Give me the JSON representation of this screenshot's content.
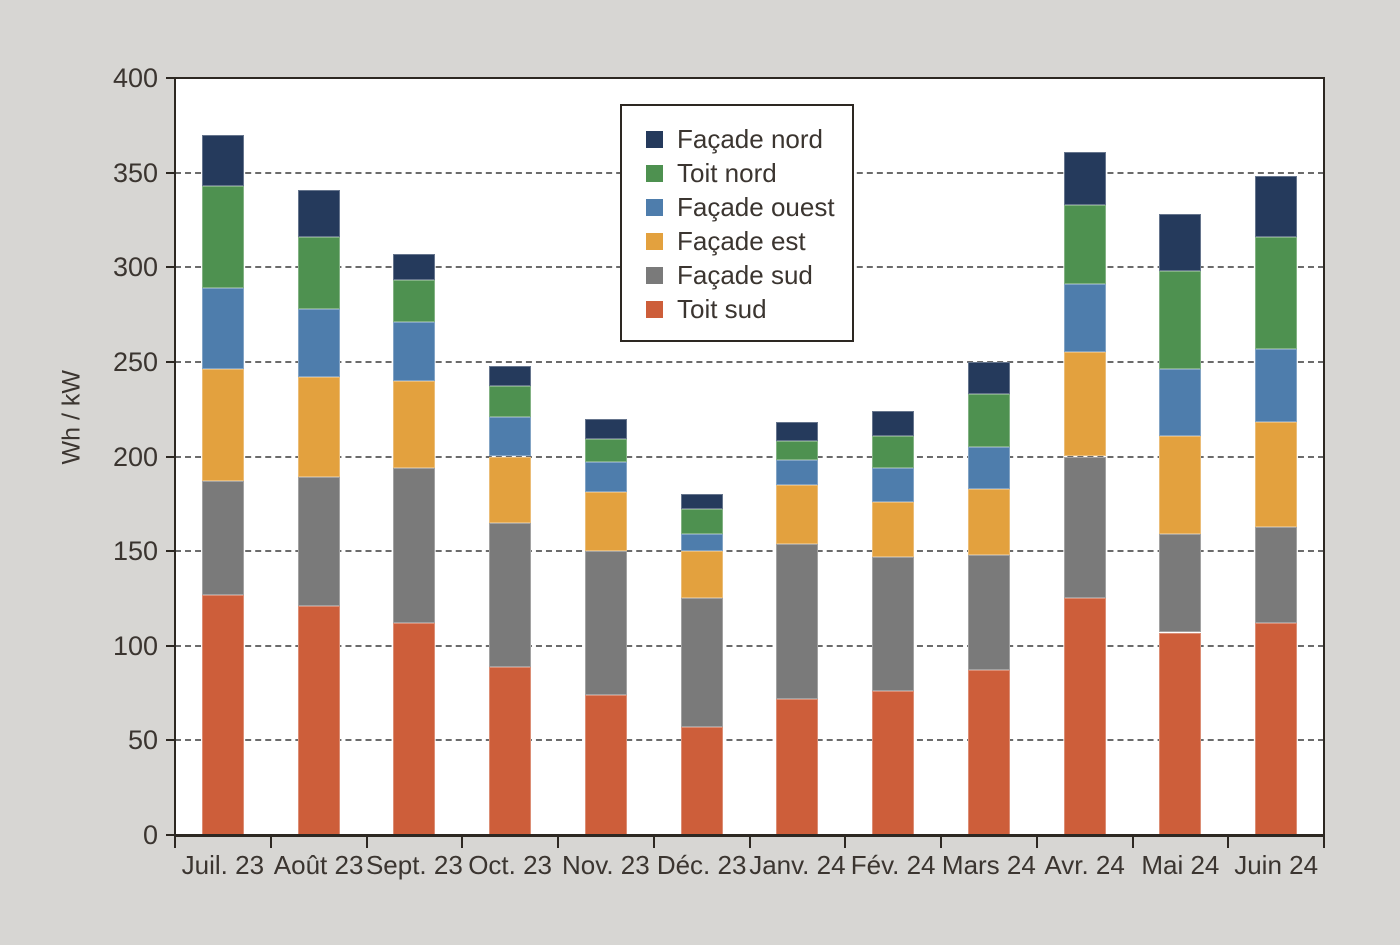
{
  "chart_data": {
    "type": "bar",
    "stacked": true,
    "title": "",
    "xlabel": "",
    "ylabel": "Wh / kW",
    "ylim": [
      0,
      400
    ],
    "yticks": [
      0,
      50,
      100,
      150,
      200,
      250,
      300,
      350,
      400
    ],
    "grid": "horizontal dashed lines at 50..350",
    "legend_position": "upper middle inside plot, boxed",
    "categories": [
      "Juil. 23",
      "Août 23",
      "Sept. 23",
      "Oct. 23",
      "Nov. 23",
      "Déc. 23",
      "Janv. 24",
      "Fév. 24",
      "Mars 24",
      "Avr. 24",
      "Mai 24",
      "Juin 24"
    ],
    "series": [
      {
        "name": "Toit sud",
        "color": "#cd5e3a",
        "values": [
          127,
          121,
          112,
          89,
          74,
          57,
          72,
          76,
          87,
          125,
          107,
          112
        ]
      },
      {
        "name": "Façade sud",
        "color": "#7a7a7a",
        "values": [
          60,
          68,
          82,
          76,
          76,
          68,
          82,
          71,
          61,
          75,
          52,
          51
        ]
      },
      {
        "name": "Façade est",
        "color": "#e3a13e",
        "values": [
          59,
          53,
          46,
          35,
          31,
          25,
          31,
          29,
          35,
          55,
          52,
          55
        ]
      },
      {
        "name": "Façade ouest",
        "color": "#4e7dac",
        "values": [
          43,
          36,
          31,
          21,
          16,
          9,
          13,
          18,
          22,
          36,
          35,
          39
        ]
      },
      {
        "name": "Toit nord",
        "color": "#4e9150",
        "values": [
          54,
          38,
          22,
          16,
          12,
          13,
          10,
          17,
          28,
          42,
          52,
          59
        ]
      },
      {
        "name": "Façade nord",
        "color": "#253a5c",
        "values": [
          27,
          25,
          14,
          11,
          11,
          8,
          10,
          13,
          17,
          28,
          30,
          32
        ]
      }
    ],
    "totals": [
      370,
      341,
      307,
      248,
      220,
      180,
      218,
      224,
      250,
      361,
      328,
      348
    ],
    "legend_order": [
      "Façade nord",
      "Toit nord",
      "Façade ouest",
      "Façade est",
      "Façade sud",
      "Toit sud"
    ],
    "colors": {
      "page_background": "#d7d6d3",
      "plot_background": "#ffffff",
      "axis": "#2d2822",
      "grid": "#6b6b6b",
      "text": "#3b3530"
    }
  }
}
